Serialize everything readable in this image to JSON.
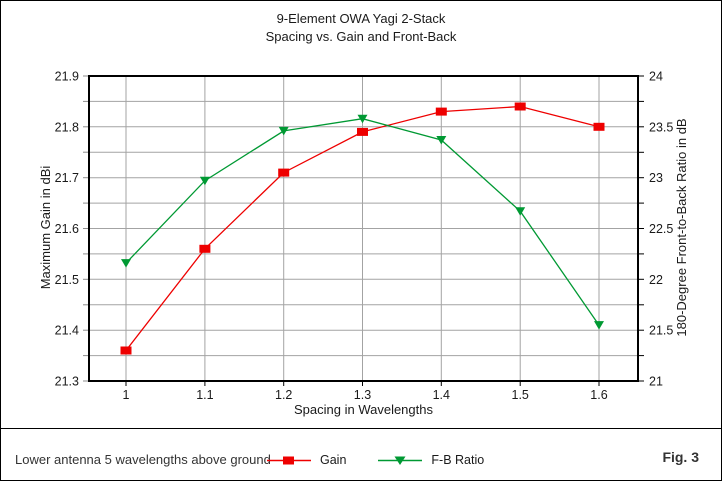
{
  "figure": {
    "title": "9-Element OWA Yagi 2-Stack",
    "subtitle": "Spacing vs. Gain and Front-Back",
    "note": "Lower antenna 5 wavelengths above ground",
    "fig_label": "Fig. 3"
  },
  "chart_data": {
    "type": "line",
    "title": "9-Element OWA Yagi 2-Stack",
    "subtitle": "Spacing vs. Gain and Front-Back",
    "xlabel": "Spacing in Wavelengths",
    "ylabel_left": "Maximum Gain in dBi",
    "ylabel_right": "180-Degree Front-to-Back Ratio in dB",
    "grid": true,
    "legend_position": "bottom",
    "x": [
      1.0,
      1.1,
      1.2,
      1.3,
      1.4,
      1.5,
      1.6
    ],
    "x_tick_labels": [
      "1",
      "1.1",
      "1.2",
      "1.3",
      "1.4",
      "1.5",
      "1.6"
    ],
    "left_axis": {
      "min": 21.3,
      "max": 21.9,
      "major": 0.1,
      "minor": 0.05,
      "tick_labels": [
        "21.3",
        "21.4",
        "21.5",
        "21.6",
        "21.7",
        "21.8",
        "21.9"
      ]
    },
    "right_axis": {
      "min": 21,
      "max": 24,
      "major": 0.5,
      "minor": 0.25,
      "tick_labels": [
        "21",
        "21.5",
        "22",
        "22.5",
        "23",
        "23.5",
        "24"
      ]
    },
    "series": [
      {
        "name": "Gain",
        "axis": "left",
        "marker": "square",
        "color": "#ee0000",
        "values": [
          21.36,
          21.56,
          21.71,
          21.79,
          21.83,
          21.84,
          21.8
        ]
      },
      {
        "name": "F-B Ratio",
        "axis": "right",
        "marker": "triangle-down",
        "color": "#009933",
        "values": [
          22.16,
          22.97,
          23.46,
          23.58,
          23.37,
          22.67,
          21.55
        ]
      }
    ],
    "colors": {
      "grid": "#a3a3a3",
      "axis": "#000000",
      "text": "#1a1a1a"
    }
  }
}
